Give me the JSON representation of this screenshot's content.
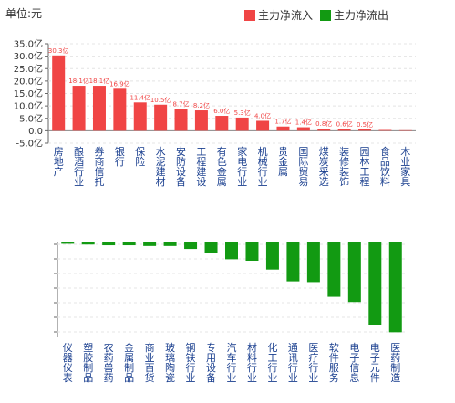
{
  "unit_label": "单位:元",
  "legend": {
    "inflow": "主力净流入",
    "outflow": "主力净流出"
  },
  "colors": {
    "inflow": "#f04545",
    "outflow": "#129a12"
  },
  "chart_data": [
    {
      "type": "bar",
      "series": [
        {
          "name": "主力净流入"
        }
      ],
      "ylim": [
        -5,
        35
      ],
      "yticks": [
        "-5.0亿",
        "0.0",
        "5.0亿",
        "10.0亿",
        "15.0亿",
        "20.0亿",
        "25.0亿",
        "30.0亿",
        "35.0亿"
      ],
      "categories": [
        "房地产",
        "酿酒行业",
        "券商信托",
        "银行",
        "保险",
        "水泥建材",
        "安防设备",
        "工程建设",
        "有色金属",
        "家电行业",
        "机械行业",
        "贵金属",
        "国际贸易",
        "煤炭采选",
        "装修装饰",
        "园林工程",
        "食品饮料",
        "木业家具"
      ],
      "values": [
        30.3,
        18.1,
        18.1,
        16.9,
        11.4,
        10.5,
        8.7,
        8.2,
        6.0,
        5.3,
        4.0,
        1.7,
        1.4,
        0.8,
        0.6,
        0.5,
        0.3,
        0.2
      ],
      "data_labels": [
        "30.3亿",
        "18.1亿",
        "18.1亿",
        "16.9亿",
        "11.4亿",
        "10.5亿",
        "8.7亿",
        "8.2亿",
        "6.0亿",
        "5.3亿",
        "4.0亿",
        "1.7亿",
        "1.4亿",
        "0.8亿",
        "0.6亿",
        "0.5亿",
        "",
        ""
      ]
    },
    {
      "type": "bar",
      "series": [
        {
          "name": "主力净流出"
        }
      ],
      "categories": [
        "仪器仪表",
        "塑胶制品",
        "农药兽药",
        "金属制品",
        "商业百货",
        "玻璃陶瓷",
        "钢铁行业",
        "专用设备",
        "汽车行业",
        "材料行业",
        "化工行业",
        "通讯行业",
        "医疗行业",
        "软件服务",
        "电子信息",
        "电子元件",
        "医药制造"
      ],
      "values": [
        -0.3,
        -0.4,
        -0.5,
        -0.5,
        -0.6,
        -0.6,
        -1.0,
        -1.6,
        -2.4,
        -2.6,
        -3.8,
        -5.4,
        -5.5,
        -7.5,
        -8.2,
        -11.3,
        -12.3
      ]
    }
  ]
}
